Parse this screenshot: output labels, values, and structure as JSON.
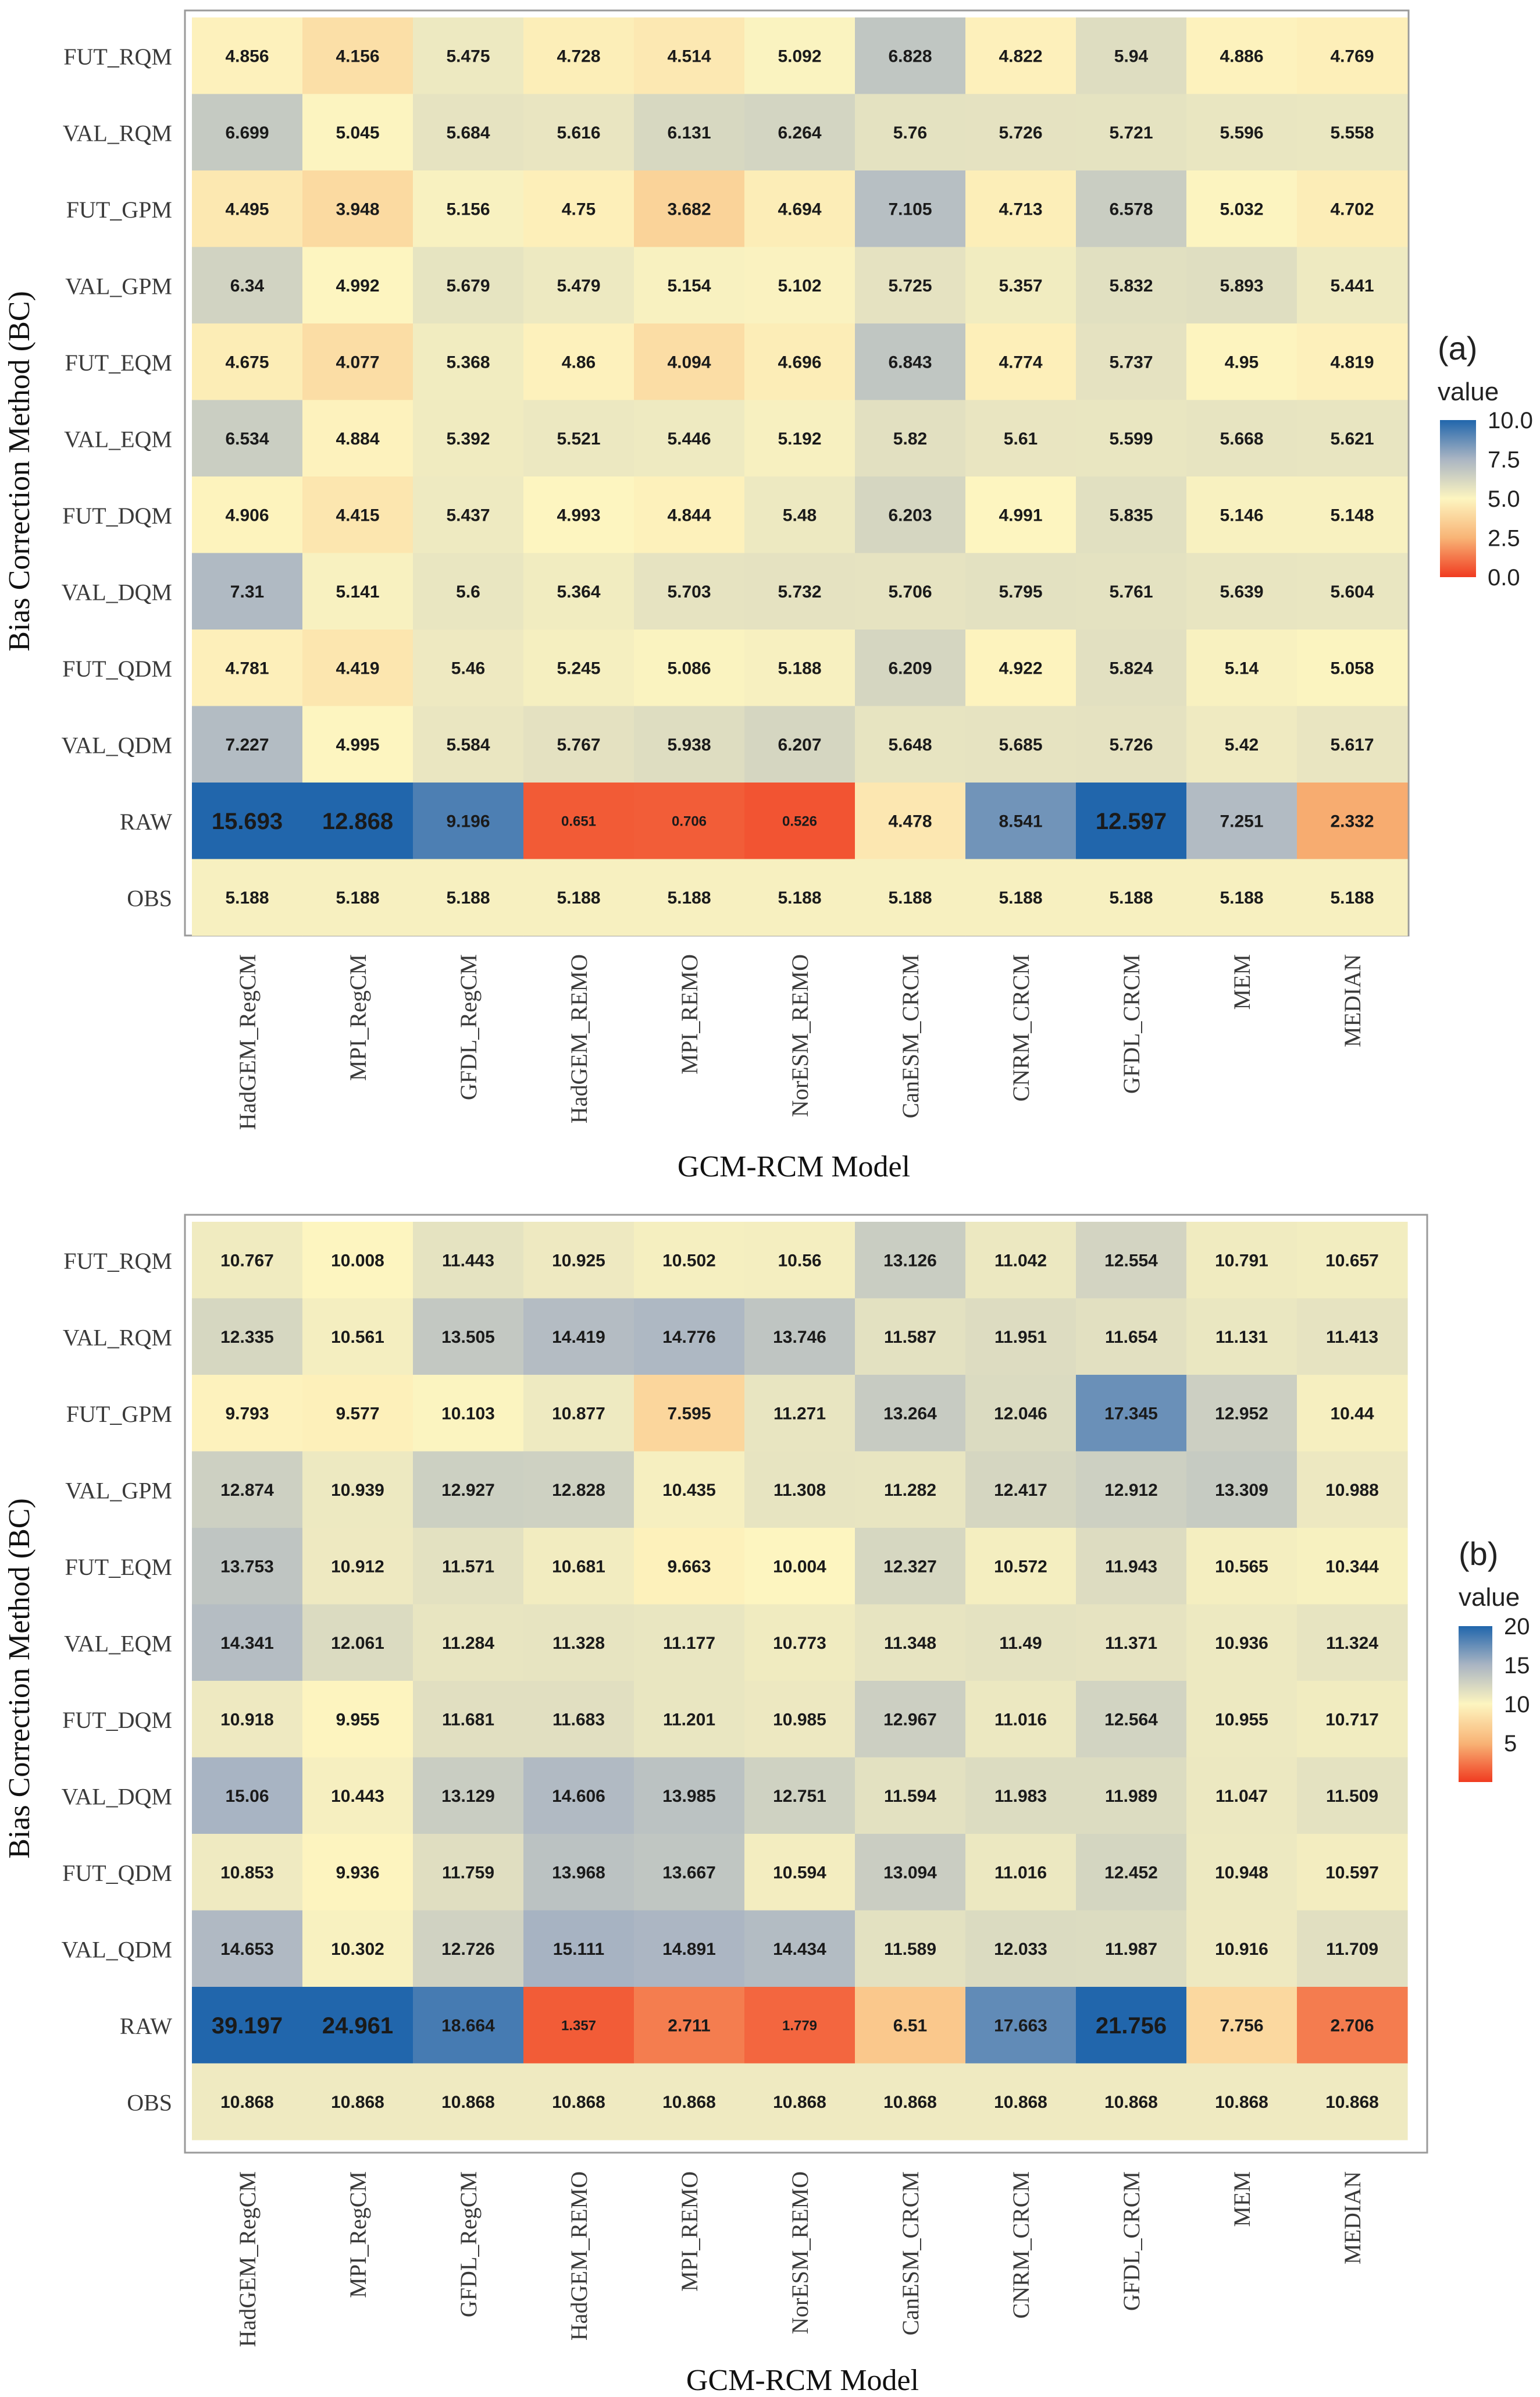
{
  "chart_data": [
    {
      "type": "heatmap",
      "panel_label": "(a)",
      "title": "",
      "xlabel": "GCM-RCM Model",
      "ylabel": "Bias Correction Method (BC)",
      "x": [
        "HadGEM_RegCM",
        "MPI_RegCM",
        "GFDL_RegCM",
        "HadGEM_REMO",
        "MPI_REMO",
        "NorESM_REMO",
        "CanESM_CRCM",
        "CNRM_CRCM",
        "GFDL_CRCM",
        "MEM",
        "MEDIAN"
      ],
      "y": [
        "FUT_RQM",
        "VAL_RQM",
        "FUT_GPM",
        "VAL_GPM",
        "FUT_EQM",
        "VAL_EQM",
        "FUT_DQM",
        "VAL_DQM",
        "FUT_QDM",
        "VAL_QDM",
        "RAW",
        "OBS"
      ],
      "values": [
        [
          "4.856",
          "4.156",
          "5.475",
          "4.728",
          "4.514",
          "5.092",
          "6.828",
          "4.822",
          "5.94",
          "4.886",
          "4.769"
        ],
        [
          "6.699",
          "5.045",
          "5.684",
          "5.616",
          "6.131",
          "6.264",
          "5.76",
          "5.726",
          "5.721",
          "5.596",
          "5.558"
        ],
        [
          "4.495",
          "3.948",
          "5.156",
          "4.75",
          "3.682",
          "4.694",
          "7.105",
          "4.713",
          "6.578",
          "5.032",
          "4.702"
        ],
        [
          "6.34",
          "4.992",
          "5.679",
          "5.479",
          "5.154",
          "5.102",
          "5.725",
          "5.357",
          "5.832",
          "5.893",
          "5.441"
        ],
        [
          "4.675",
          "4.077",
          "5.368",
          "4.86",
          "4.094",
          "4.696",
          "6.843",
          "4.774",
          "5.737",
          "4.95",
          "4.819"
        ],
        [
          "6.534",
          "4.884",
          "5.392",
          "5.521",
          "5.446",
          "5.192",
          "5.82",
          "5.61",
          "5.599",
          "5.668",
          "5.621"
        ],
        [
          "4.906",
          "4.415",
          "5.437",
          "4.993",
          "4.844",
          "5.48",
          "6.203",
          "4.991",
          "5.835",
          "5.146",
          "5.148"
        ],
        [
          "7.31",
          "5.141",
          "5.6",
          "5.364",
          "5.703",
          "5.732",
          "5.706",
          "5.795",
          "5.761",
          "5.639",
          "5.604"
        ],
        [
          "4.781",
          "4.419",
          "5.46",
          "5.245",
          "5.086",
          "5.188",
          "6.209",
          "4.922",
          "5.824",
          "5.14",
          "5.058"
        ],
        [
          "7.227",
          "4.995",
          "5.584",
          "5.767",
          "5.938",
          "6.207",
          "5.648",
          "5.685",
          "5.726",
          "5.42",
          "5.617"
        ],
        [
          "15.693",
          "12.868",
          "9.196",
          "0.651",
          "0.706",
          "0.526",
          "4.478",
          "8.541",
          "12.597",
          "7.251",
          "2.332"
        ],
        [
          "5.188",
          "5.188",
          "5.188",
          "5.188",
          "5.188",
          "5.188",
          "5.188",
          "5.188",
          "5.188",
          "5.188",
          "5.188"
        ]
      ],
      "color_range": [
        0,
        10
      ],
      "legend_title": "value",
      "legend_ticks": [
        "10.0",
        "7.5",
        "5.0",
        "2.5",
        "0.0"
      ],
      "legend_values": [
        10,
        7.5,
        5,
        2.5,
        0
      ]
    },
    {
      "type": "heatmap",
      "panel_label": "(b)",
      "title": "",
      "xlabel": "GCM-RCM Model",
      "ylabel": "Bias Correction Method (BC)",
      "x": [
        "HadGEM_RegCM",
        "MPI_RegCM",
        "GFDL_RegCM",
        "HadGEM_REMO",
        "MPI_REMO",
        "NorESM_REMO",
        "CanESM_CRCM",
        "CNRM_CRCM",
        "GFDL_CRCM",
        "MEM",
        "MEDIAN"
      ],
      "y": [
        "FUT_RQM",
        "VAL_RQM",
        "FUT_GPM",
        "VAL_GPM",
        "FUT_EQM",
        "VAL_EQM",
        "FUT_DQM",
        "VAL_DQM",
        "FUT_QDM",
        "VAL_QDM",
        "RAW",
        "OBS"
      ],
      "values": [
        [
          "10.767",
          "10.008",
          "11.443",
          "10.925",
          "10.502",
          "10.56",
          "13.126",
          "11.042",
          "12.554",
          "10.791",
          "10.657"
        ],
        [
          "12.335",
          "10.561",
          "13.505",
          "14.419",
          "14.776",
          "13.746",
          "11.587",
          "11.951",
          "11.654",
          "11.131",
          "11.413"
        ],
        [
          "9.793",
          "9.577",
          "10.103",
          "10.877",
          "7.595",
          "11.271",
          "13.264",
          "12.046",
          "17.345",
          "12.952",
          "10.44"
        ],
        [
          "12.874",
          "10.939",
          "12.927",
          "12.828",
          "10.435",
          "11.308",
          "11.282",
          "12.417",
          "12.912",
          "13.309",
          "10.988"
        ],
        [
          "13.753",
          "10.912",
          "11.571",
          "10.681",
          "9.663",
          "10.004",
          "12.327",
          "10.572",
          "11.943",
          "10.565",
          "10.344"
        ],
        [
          "14.341",
          "12.061",
          "11.284",
          "11.328",
          "11.177",
          "10.773",
          "11.348",
          "11.49",
          "11.371",
          "10.936",
          "11.324"
        ],
        [
          "10.918",
          "9.955",
          "11.681",
          "11.683",
          "11.201",
          "10.985",
          "12.967",
          "11.016",
          "12.564",
          "10.955",
          "10.717"
        ],
        [
          "15.06",
          "10.443",
          "13.129",
          "14.606",
          "13.985",
          "12.751",
          "11.594",
          "11.983",
          "11.989",
          "11.047",
          "11.509"
        ],
        [
          "10.853",
          "9.936",
          "11.759",
          "13.968",
          "13.667",
          "10.594",
          "13.094",
          "11.016",
          "12.452",
          "10.948",
          "10.597"
        ],
        [
          "14.653",
          "10.302",
          "12.726",
          "15.111",
          "14.891",
          "14.434",
          "11.589",
          "12.033",
          "11.987",
          "10.916",
          "11.709"
        ],
        [
          "39.197",
          "24.961",
          "18.664",
          "1.357",
          "2.711",
          "1.779",
          "6.51",
          "17.663",
          "21.756",
          "7.756",
          "2.706"
        ],
        [
          "10.868",
          "10.868",
          "10.868",
          "10.868",
          "10.868",
          "10.868",
          "10.868",
          "10.868",
          "10.868",
          "10.868",
          "10.868"
        ]
      ],
      "color_range": [
        0,
        20
      ],
      "legend_title": "value",
      "legend_ticks": [
        "20",
        "15",
        "10",
        "5"
      ],
      "legend_values": [
        20,
        15,
        10,
        5
      ]
    }
  ],
  "colors": {
    "high": "#2166ac",
    "mid_high": "#aab5c3",
    "mid": "#fdf5c0",
    "mid_low": "#f8b476",
    "low": "#f03b20"
  }
}
